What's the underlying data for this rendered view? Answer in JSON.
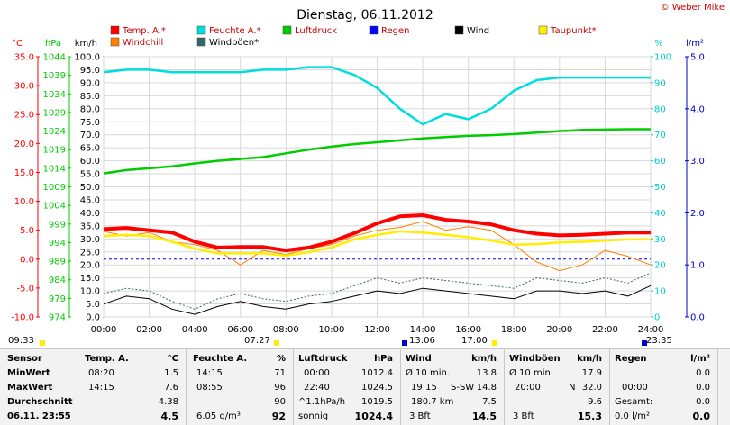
{
  "chart_data": {
    "type": "line",
    "title": "Dienstag, 06.11.2012",
    "brand": "© Weber Mike",
    "x_ticks": [
      "00:00",
      "02:00",
      "04:00",
      "06:00",
      "08:00",
      "10:00",
      "12:00",
      "14:00",
      "16:00",
      "18:00",
      "20:00",
      "22:00",
      "24:00"
    ],
    "x_range_h": [
      0,
      24
    ],
    "axes": {
      "temp": {
        "unit": "°C",
        "range": [
          -10,
          35
        ],
        "ticks": [
          "35.0",
          "30.0",
          "25.0",
          "20.0",
          "15.0",
          "10.0",
          "5.0",
          "0.0",
          "-5.0",
          "-10.0"
        ],
        "color": "#ff0000"
      },
      "press": {
        "unit": "hPa",
        "range": [
          974,
          1044
        ],
        "ticks": [
          "1044",
          "1039",
          "1034",
          "1029",
          "1024",
          "1019",
          "1014",
          "1009",
          "1004",
          "999",
          "994",
          "989",
          "984",
          "979",
          "974"
        ],
        "color": "#00cc00"
      },
      "wind": {
        "unit": "km/h",
        "range": [
          0,
          100
        ],
        "ticks": [
          "100.0",
          "95.0",
          "90.0",
          "85.0",
          "80.0",
          "75.0",
          "70.0",
          "65.0",
          "60.0",
          "55.0",
          "50.0",
          "45.0",
          "40.0",
          "35.0",
          "30.0",
          "25.0",
          "20.0",
          "15.0",
          "10.0",
          "5.0",
          "0.0"
        ],
        "color": "#000000"
      },
      "hum": {
        "unit": "%",
        "range": [
          0,
          100
        ],
        "ticks": [
          "100",
          "90",
          "80",
          "70",
          "60",
          "50",
          "40",
          "30",
          "20",
          "10",
          "0"
        ],
        "color": "#00cccc"
      },
      "rain": {
        "unit": "l/m²",
        "range": [
          0,
          5
        ],
        "ticks": [
          "5.0",
          "4.0",
          "3.0",
          "2.0",
          "1.0",
          "0.0"
        ],
        "color": "#0000cc"
      }
    },
    "legend": [
      {
        "name": "Temp. A.*",
        "color": "#ff0000"
      },
      {
        "name": "Feuchte A.*",
        "color": "#00dddd"
      },
      {
        "name": "Luftdruck",
        "color": "#00cc00"
      },
      {
        "name": "Regen",
        "color": "#0000ff"
      },
      {
        "name": "Wind",
        "color": "#000000"
      },
      {
        "name": "Taupunkt*",
        "color": "#ffee00"
      },
      {
        "name": "Windchill",
        "color": "#ff8000"
      },
      {
        "name": "Windböen*",
        "color": "#336666"
      }
    ],
    "series": [
      {
        "name": "Temp. A.*",
        "axis": "temp",
        "color": "#ff0000",
        "x": [
          0,
          1,
          2,
          3,
          4,
          5,
          6,
          7,
          8,
          9,
          10,
          11,
          12,
          13,
          14,
          15,
          16,
          17,
          18,
          19,
          20,
          21,
          22,
          23,
          24
        ],
        "y": [
          5.2,
          5.4,
          5.0,
          4.6,
          3.0,
          2.0,
          2.1,
          2.1,
          1.5,
          2.0,
          3.0,
          4.5,
          6.2,
          7.4,
          7.6,
          6.8,
          6.5,
          6.0,
          5.0,
          4.4,
          4.1,
          4.2,
          4.4,
          4.6,
          4.6
        ]
      },
      {
        "name": "Feuchte A.*",
        "axis": "hum",
        "color": "#00dddd",
        "x": [
          0,
          1,
          2,
          3,
          4,
          5,
          6,
          7,
          8,
          9,
          10,
          11,
          12,
          13,
          14,
          15,
          16,
          17,
          18,
          19,
          20,
          21,
          22,
          23,
          24
        ],
        "y": [
          94,
          95,
          95,
          94,
          94,
          94,
          94,
          95,
          95,
          96,
          96,
          93,
          88,
          80,
          74,
          78,
          76,
          80,
          87,
          91,
          92,
          92,
          92,
          92,
          92
        ]
      },
      {
        "name": "Luftdruck",
        "axis": "press",
        "color": "#00cc00",
        "x": [
          0,
          1,
          2,
          3,
          4,
          5,
          6,
          7,
          8,
          9,
          10,
          11,
          12,
          13,
          14,
          15,
          16,
          17,
          18,
          19,
          20,
          21,
          22,
          23,
          24
        ],
        "y": [
          1012.6,
          1013.5,
          1014.0,
          1014.5,
          1015.3,
          1016.0,
          1016.5,
          1017.0,
          1018.0,
          1019.0,
          1019.8,
          1020.5,
          1021.0,
          1021.5,
          1022.0,
          1022.4,
          1022.7,
          1022.9,
          1023.2,
          1023.6,
          1024.0,
          1024.3,
          1024.4,
          1024.5,
          1024.5
        ]
      },
      {
        "name": "Taupunkt*",
        "axis": "temp",
        "color": "#ffee00",
        "x": [
          0,
          1,
          2,
          3,
          4,
          5,
          6,
          7,
          8,
          9,
          10,
          11,
          12,
          13,
          14,
          15,
          16,
          17,
          18,
          19,
          20,
          21,
          22,
          23,
          24
        ],
        "y": [
          4.0,
          4.2,
          4.0,
          3.0,
          1.8,
          1.0,
          1.0,
          1.0,
          0.6,
          1.2,
          2.0,
          3.4,
          4.2,
          4.8,
          4.6,
          4.2,
          3.8,
          3.2,
          2.5,
          2.6,
          2.9,
          3.0,
          3.2,
          3.4,
          3.4
        ]
      },
      {
        "name": "Windchill",
        "axis": "temp",
        "color": "#ff8000",
        "x": [
          0,
          1,
          2,
          3,
          4,
          5,
          6,
          7,
          8,
          9,
          10,
          11,
          12,
          13,
          14,
          15,
          16,
          17,
          18,
          19,
          20,
          21,
          22,
          23,
          24
        ],
        "y": [
          4.8,
          4.0,
          4.6,
          3.0,
          2.5,
          1.5,
          -1.0,
          1.5,
          0.8,
          1.8,
          2.5,
          4.0,
          5.0,
          5.5,
          6.5,
          5.0,
          5.6,
          5.0,
          2.5,
          -0.5,
          -2.0,
          -1.0,
          1.5,
          0.5,
          -1.0
        ]
      },
      {
        "name": "Wind",
        "axis": "wind",
        "color": "#000000",
        "x": [
          0,
          1,
          2,
          3,
          4,
          5,
          6,
          7,
          8,
          9,
          10,
          11,
          12,
          13,
          14,
          15,
          16,
          17,
          18,
          19,
          20,
          21,
          22,
          23,
          24
        ],
        "y": [
          5,
          8,
          7,
          3,
          1,
          4,
          6,
          4,
          3,
          5,
          6,
          8,
          10,
          9,
          11,
          10,
          9,
          8,
          7,
          10,
          10,
          9,
          10,
          8,
          12
        ]
      },
      {
        "name": "Windböen*",
        "axis": "wind",
        "color": "#336666",
        "x": [
          0,
          1,
          2,
          3,
          4,
          5,
          6,
          7,
          8,
          9,
          10,
          11,
          12,
          13,
          14,
          15,
          16,
          17,
          18,
          19,
          20,
          21,
          22,
          23,
          24
        ],
        "y": [
          9,
          11,
          10,
          6,
          3,
          7,
          9,
          7,
          6,
          8,
          9,
          12,
          15,
          13,
          15,
          14,
          13,
          12,
          11,
          15,
          14,
          13,
          15,
          13,
          17
        ]
      }
    ],
    "dashed_zero": {
      "axis": "temp",
      "value": 0,
      "color": "#0000ff"
    },
    "time_markers": [
      {
        "label": "09:33",
        "color": "#ffee00"
      },
      {
        "label": "07:27",
        "color": "#ffee00"
      },
      {
        "label": "13:06",
        "color": "#0000cc"
      },
      {
        "label": "17:00",
        "color": "#ffee00"
      },
      {
        "label": "23:35",
        "color": "#0000cc"
      }
    ]
  },
  "stats": {
    "sensor": {
      "header": "Sensor",
      "rows": [
        "MinWert",
        "MaxWert",
        "Durchschnitt",
        "06.11. 23:55"
      ]
    },
    "temp": {
      "header": "Temp. A.",
      "unit": "°C",
      "rows": [
        [
          "08:20",
          "1.5"
        ],
        [
          "14:15",
          "7.6"
        ],
        [
          "",
          "4.38"
        ],
        [
          "",
          "4.5"
        ]
      ]
    },
    "hum": {
      "header": "Feuchte A.",
      "unit": "%",
      "rows": [
        [
          "14:15",
          "71"
        ],
        [
          "08:55",
          "96"
        ],
        [
          "",
          "90"
        ],
        [
          "6.05 g/m³",
          "92"
        ]
      ]
    },
    "press": {
      "header": "Luftdruck",
      "unit": "hPa",
      "rows": [
        [
          "00:00",
          "1012.4"
        ],
        [
          "22:40",
          "1024.5"
        ],
        [
          "^1.1hPa/h",
          "1019.5"
        ],
        [
          "sonnig",
          "1024.4"
        ]
      ]
    },
    "wind": {
      "header": "Wind",
      "unit": "km/h",
      "rows": [
        [
          "Ø 10 min.",
          "",
          "13.8"
        ],
        [
          "19:15",
          "S-SW",
          "14.8"
        ],
        [
          "180.7 km",
          "",
          "7.5"
        ],
        [
          "3 Bft",
          "",
          "14.5"
        ]
      ]
    },
    "gust": {
      "header": "Windböen",
      "unit": "km/h",
      "rows": [
        [
          "Ø 10 min.",
          "",
          "17.9"
        ],
        [
          "20:00",
          "N",
          "32.0"
        ],
        [
          "",
          "",
          "9.6"
        ],
        [
          "3 Bft",
          "",
          "15.3"
        ]
      ]
    },
    "rain": {
      "header": "Regen",
      "unit": "l/m²",
      "rows": [
        [
          "",
          "0.0"
        ],
        [
          "00:00",
          "0.0"
        ],
        [
          "Gesamt:",
          "0.0"
        ],
        [
          "0.0 l/m²",
          "0.0"
        ]
      ]
    }
  }
}
